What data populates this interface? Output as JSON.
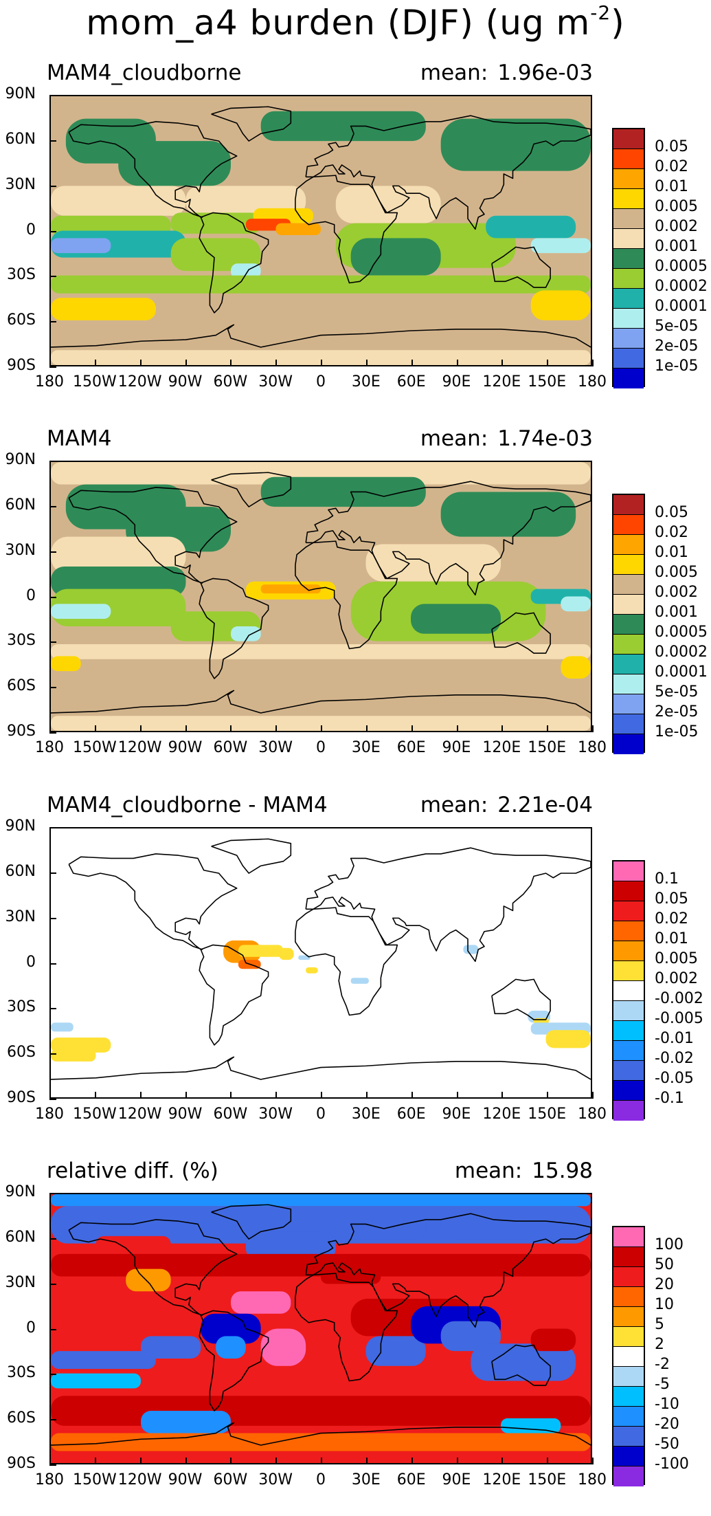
{
  "figure": {
    "title": "mom_a4 burden (DJF) (ug m",
    "title_exponent": "-2",
    "title_close": ")"
  },
  "chart_data": [
    {
      "type": "heatmap",
      "title": "MAM4_cloudborne",
      "mean_label": "mean:",
      "mean_value": "1.96e-03",
      "lat_ticks": [
        "90N",
        "60N",
        "30N",
        "0",
        "30S",
        "60S",
        "90S"
      ],
      "lon_ticks": [
        "180",
        "150W",
        "120W",
        "90W",
        "60W",
        "30W",
        "0",
        "30E",
        "60E",
        "90E",
        "120E",
        "150E",
        "180"
      ],
      "colorbar_labels": [
        "0.05",
        "0.02",
        "0.01",
        "0.005",
        "0.002",
        "0.001",
        "0.0005",
        "0.0002",
        "0.0001",
        "5e-05",
        "2e-05",
        "1e-05"
      ],
      "colorbar_colors": [
        "#b22222",
        "#ff4500",
        "#ffa500",
        "#ffd700",
        "#d2b48c",
        "#f5deb3",
        "#2e8b57",
        "#9acd32",
        "#20b2aa",
        "#afeeee",
        "#7fa3f0",
        "#4169e1",
        "#0000cd"
      ]
    },
    {
      "type": "heatmap",
      "title": "MAM4",
      "mean_label": "mean:",
      "mean_value": "1.74e-03",
      "lat_ticks": [
        "90N",
        "60N",
        "30N",
        "0",
        "30S",
        "60S",
        "90S"
      ],
      "lon_ticks": [
        "180",
        "150W",
        "120W",
        "90W",
        "60W",
        "30W",
        "0",
        "30E",
        "60E",
        "90E",
        "120E",
        "150E",
        "180"
      ],
      "colorbar_labels": [
        "0.05",
        "0.02",
        "0.01",
        "0.005",
        "0.002",
        "0.001",
        "0.0005",
        "0.0002",
        "0.0001",
        "5e-05",
        "2e-05",
        "1e-05"
      ],
      "colorbar_colors": [
        "#b22222",
        "#ff4500",
        "#ffa500",
        "#ffd700",
        "#d2b48c",
        "#f5deb3",
        "#2e8b57",
        "#9acd32",
        "#20b2aa",
        "#afeeee",
        "#7fa3f0",
        "#4169e1",
        "#0000cd"
      ]
    },
    {
      "type": "heatmap",
      "title": "MAM4_cloudborne - MAM4",
      "mean_label": "mean:",
      "mean_value": "2.21e-04",
      "lat_ticks": [
        "90N",
        "60N",
        "30N",
        "0",
        "30S",
        "60S",
        "90S"
      ],
      "lon_ticks": [
        "180",
        "150W",
        "120W",
        "90W",
        "60W",
        "30W",
        "0",
        "30E",
        "60E",
        "90E",
        "120E",
        "150E",
        "180"
      ],
      "colorbar_labels": [
        "0.1",
        "0.05",
        "0.02",
        "0.01",
        "0.005",
        "0.002",
        "-0.002",
        "-0.005",
        "-0.01",
        "-0.02",
        "-0.05",
        "-0.1"
      ],
      "colorbar_colors": [
        "#ff69b4",
        "#cc0000",
        "#ee1c1c",
        "#ff6600",
        "#ff9900",
        "#ffe135",
        "#ffffff",
        "#add8f5",
        "#00bfff",
        "#1e90ff",
        "#4169e1",
        "#0000cd",
        "#8a2be2"
      ]
    },
    {
      "type": "heatmap",
      "title": "relative diff. (%)",
      "mean_label": "mean:",
      "mean_value": "15.98",
      "lat_ticks": [
        "90N",
        "60N",
        "30N",
        "0",
        "30S",
        "60S",
        "90S"
      ],
      "lon_ticks": [
        "180",
        "150W",
        "120W",
        "90W",
        "60W",
        "30W",
        "0",
        "30E",
        "60E",
        "90E",
        "120E",
        "150E",
        "180"
      ],
      "colorbar_labels": [
        "100",
        "50",
        "20",
        "10",
        "5",
        "2",
        "-2",
        "-5",
        "-10",
        "-20",
        "-50",
        "-100"
      ],
      "colorbar_colors": [
        "#ff69b4",
        "#cc0000",
        "#ee1c1c",
        "#ff6600",
        "#ff9900",
        "#ffe135",
        "#ffffff",
        "#add8f5",
        "#00bfff",
        "#1e90ff",
        "#4169e1",
        "#0000cd",
        "#8a2be2"
      ]
    }
  ]
}
